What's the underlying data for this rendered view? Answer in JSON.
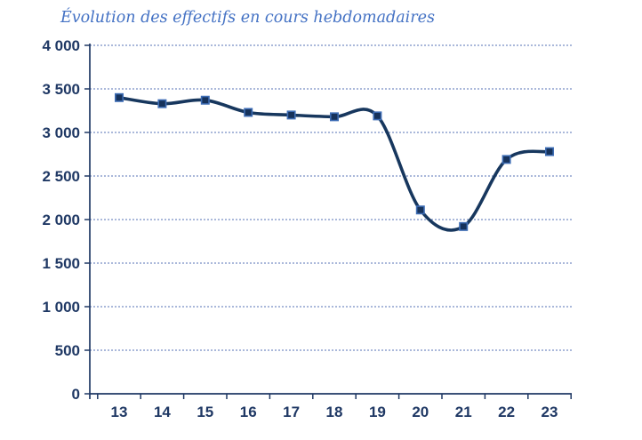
{
  "chart_data": {
    "type": "line",
    "title": "Évolution des effectifs en cours hebdomadaires",
    "categories": [
      "13",
      "14",
      "15",
      "16",
      "17",
      "18",
      "19",
      "20",
      "21",
      "22",
      "23"
    ],
    "series": [
      {
        "values": [
          3400,
          3330,
          3370,
          3230,
          3200,
          3180,
          3190,
          2110,
          1920,
          2690,
          2780
        ]
      }
    ],
    "xlabel": "",
    "ylabel": "",
    "ylim": [
      0,
      4000
    ],
    "ytick_step": 500,
    "ytick_labels": [
      "0",
      "500",
      "1 000",
      "1 500",
      "2 000",
      "2 500",
      "3 000",
      "3 500",
      "4 000"
    ],
    "grid": "horizontal-dashed",
    "legend": "none",
    "smooth": true,
    "marker": "square",
    "colors": {
      "title": "#4472C4",
      "line": "#17375E",
      "marker_fill": "#16325B",
      "marker_border": "#3E6DB5",
      "grid": "#5472B4",
      "axis": "#1F3864",
      "tick_label": "#1F3864"
    }
  }
}
